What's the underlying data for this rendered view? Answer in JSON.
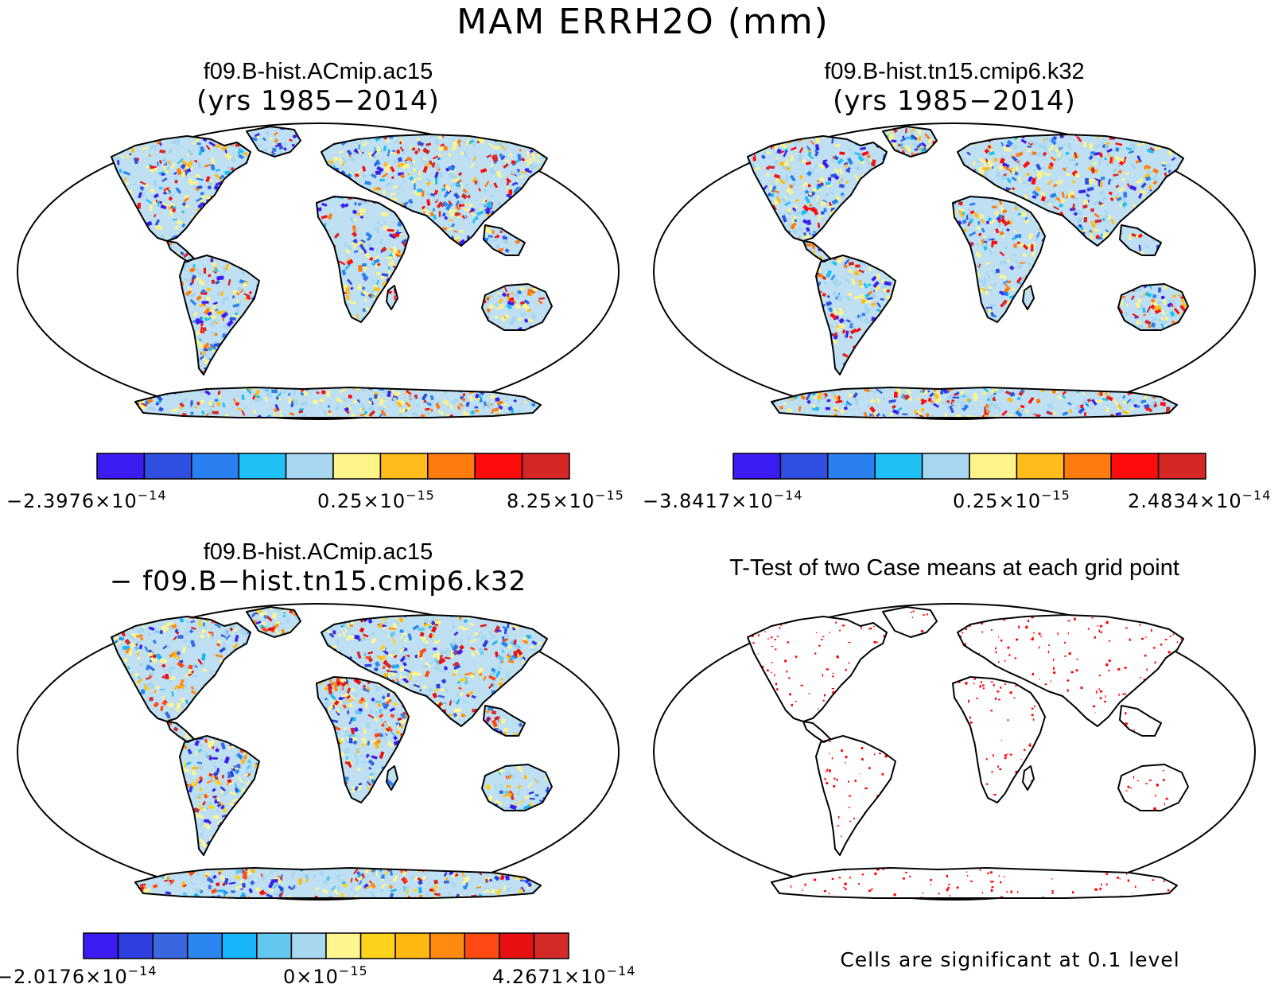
{
  "figure": {
    "title": "MAM ERRH2O (mm)"
  },
  "panels": [
    {
      "id": "case1",
      "title": "f09.B-hist.ACmip.ac15",
      "subtitle": "(yrs 1985−2014)",
      "colorbar": {
        "colors": [
          "#3b1cf2",
          "#2e4fe0",
          "#2a80f0",
          "#1ec0f6",
          "#a6d6f0",
          "#fff48a",
          "#ffbc1a",
          "#ff7a0f",
          "#ff0d0d",
          "#d62626"
        ],
        "ticks": [
          {
            "mantissa": "−2.3976×10",
            "exp": "−14"
          },
          {
            "mantissa": "0.25×10",
            "exp": "−15"
          },
          {
            "mantissa": "8.25×10",
            "exp": "−15"
          }
        ]
      }
    },
    {
      "id": "case2",
      "title": "f09.B-hist.tn15.cmip6.k32",
      "subtitle": "(yrs 1985−2014)",
      "colorbar": {
        "colors": [
          "#3b1cf2",
          "#2e4fe0",
          "#2a80f0",
          "#1ec0f6",
          "#a6d6f0",
          "#fff48a",
          "#ffbc1a",
          "#ff7a0f",
          "#ff0d0d",
          "#d62626"
        ],
        "ticks": [
          {
            "mantissa": "−3.8417×10",
            "exp": "−14"
          },
          {
            "mantissa": "0.25×10",
            "exp": "−15"
          },
          {
            "mantissa": "2.4834×10",
            "exp": "−14"
          }
        ]
      }
    },
    {
      "id": "diff",
      "title": "f09.B-hist.ACmip.ac15",
      "subtitle": "− f09.B−hist.tn15.cmip6.k32",
      "colorbar": {
        "colors": [
          "#3b1cf2",
          "#2e3fe0",
          "#3a66e0",
          "#2a86f0",
          "#16b4f8",
          "#62c8f0",
          "#a8d8f0",
          "#fff690",
          "#fdd21c",
          "#ffb80f",
          "#ff8a10",
          "#ff4a12",
          "#e81010",
          "#d42a2a"
        ],
        "ticks": [
          {
            "mantissa": "−2.0176×10",
            "exp": "−14"
          },
          {
            "mantissa": "0×10",
            "exp": "−15"
          },
          {
            "mantissa": "4.2671×10",
            "exp": "−14"
          }
        ]
      }
    },
    {
      "id": "ttest",
      "title": "T-Test of two Case means at each grid point",
      "footnote": "Cells are significant at 0.1 level",
      "significance_color": "#ff0000"
    }
  ]
}
